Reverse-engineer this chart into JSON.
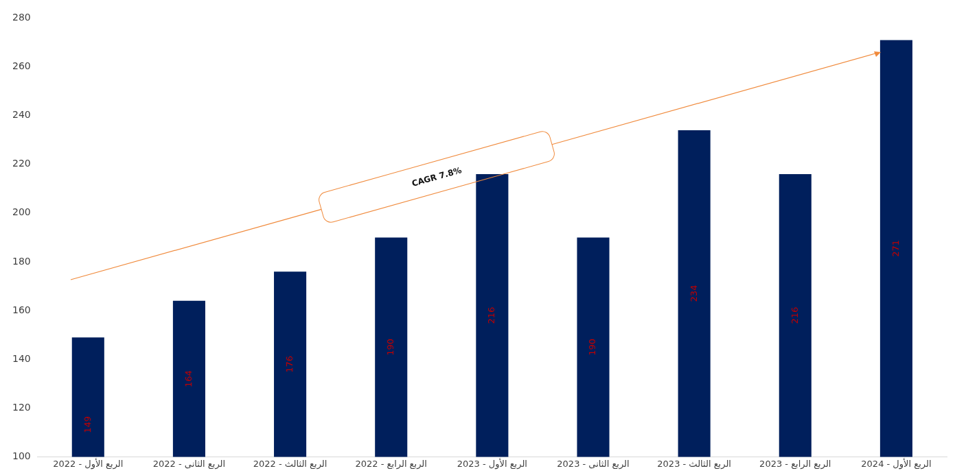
{
  "chart_data": {
    "type": "bar",
    "categories": [
      "الربع الأول - 2022",
      "الربع الثانى - 2022",
      "الربع الثالث - 2022",
      "الربع الرابع - 2022",
      "الربع الأول - 2023",
      "الربع الثانى - 2023",
      "الربع الثالث - 2023",
      "الربع الرابع - 2023",
      "الربع الأول - 2024"
    ],
    "values": [
      149,
      164,
      176,
      190,
      216,
      190,
      234,
      216,
      271
    ],
    "color": "#001f5c",
    "ylim": [
      100,
      280
    ],
    "yticks": [
      100,
      120,
      140,
      160,
      180,
      200,
      220,
      240,
      260,
      280
    ],
    "grid": false,
    "legend": false,
    "data_labels": true,
    "annotations": [
      "CAGR 7.8%"
    ]
  }
}
